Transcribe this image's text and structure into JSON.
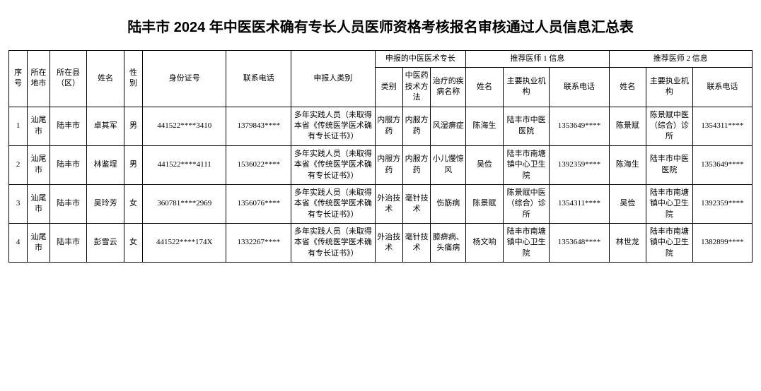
{
  "title": "陆丰市 2024 年中医医术确有专长人员医师资格考核报名审核通过人员信息汇总表",
  "headers": {
    "seq": "序号",
    "city": "所在地市",
    "county": "所在县（区）",
    "name": "姓名",
    "sex": "性别",
    "id": "身份证号",
    "phone": "联系电话",
    "applicant_type": "申报人类别",
    "specialty_group": "申报的中医医术专长",
    "specialty_cat": "类别",
    "specialty_method": "中医药技术方法",
    "specialty_disease": "治疗的疾病名称",
    "rec1_group": "推荐医师 1 信息",
    "rec2_group": "推荐医师 2 信息",
    "rec_name": "姓名",
    "rec_org": "主要执业机构",
    "rec_phone": "联系电话"
  },
  "rows": [
    {
      "seq": "1",
      "city": "汕尾市",
      "county": "陆丰市",
      "name": "卓其军",
      "sex": "男",
      "id": "441522****3410",
      "phone": "1379843****",
      "applicant_type": "多年实践人员（未取得本省《传统医学医术确有专长证书》）",
      "cat": "内服方药",
      "method": "内服方药",
      "disease": "风湿痹症",
      "r1_name": "陈海生",
      "r1_org": "陆丰市中医医院",
      "r1_phone": "1353649****",
      "r2_name": "陈景赋",
      "r2_org": "陈景赋中医（综合）诊所",
      "r2_phone": "1354311****"
    },
    {
      "seq": "2",
      "city": "汕尾市",
      "county": "陆丰市",
      "name": "林鉴埕",
      "sex": "男",
      "id": "441522****4111",
      "phone": "1536022****",
      "applicant_type": "多年实践人员（未取得本省《传统医学医术确有专长证书》）",
      "cat": "内服方药",
      "method": "内服方药",
      "disease": "小儿慢惊风",
      "r1_name": "吴俭",
      "r1_org": "陆丰市南塘镇中心卫生院",
      "r1_phone": "1392359****",
      "r2_name": "陈海生",
      "r2_org": "陆丰市中医医院",
      "r2_phone": "1353649****"
    },
    {
      "seq": "3",
      "city": "汕尾市",
      "county": "陆丰市",
      "name": "吴玲芳",
      "sex": "女",
      "id": "360781****2969",
      "phone": "1356076****",
      "applicant_type": "多年实践人员（未取得本省《传统医学医术确有专长证书》）",
      "cat": "外治技术",
      "method": "毫针技术",
      "disease": "伤筋病",
      "r1_name": "陈景赋",
      "r1_org": "陈景赋中医（综合）诊所",
      "r1_phone": "1354311****",
      "r2_name": "吴俭",
      "r2_org": "陆丰市南塘镇中心卫生院",
      "r2_phone": "1392359****"
    },
    {
      "seq": "4",
      "city": "汕尾市",
      "county": "陆丰市",
      "name": "彭雪云",
      "sex": "女",
      "id": "441522****174X",
      "phone": "1332267****",
      "applicant_type": "多年实践人员（未取得本省《传统医学医术确有专长证书》）",
      "cat": "外治技术",
      "method": "毫针技术",
      "disease": "膝痹病、头痛病",
      "r1_name": "杨文响",
      "r1_org": "陆丰市南塘镇中心卫生院",
      "r1_phone": "1353648****",
      "r2_name": "林世龙",
      "r2_org": "陆丰市南塘镇中心卫生院",
      "r2_phone": "1382899****"
    }
  ]
}
